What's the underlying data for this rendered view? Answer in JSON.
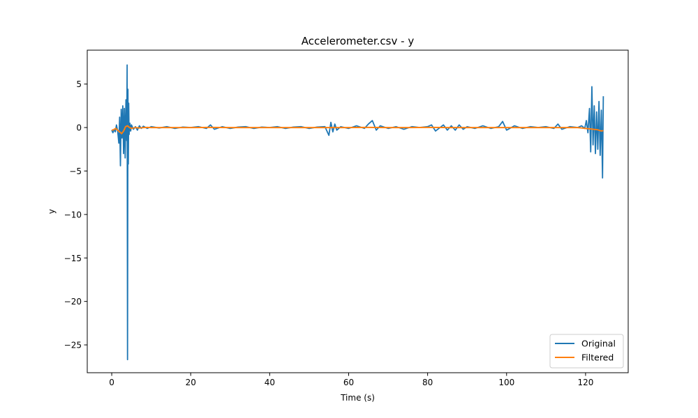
{
  "chart_data": {
    "type": "line",
    "title": "Accelerometer.csv - y",
    "xlabel": "Time (s)",
    "ylabel": "y",
    "xlim": [
      -6.2,
      130.8
    ],
    "ylim": [
      -28.2,
      8.9
    ],
    "x_ticks": [
      0,
      20,
      40,
      60,
      80,
      100,
      120
    ],
    "x_tick_labels": [
      "0",
      "20",
      "40",
      "60",
      "80",
      "100",
      "120"
    ],
    "y_ticks": [
      5,
      0,
      -5,
      -10,
      -15,
      -20,
      -25
    ],
    "y_tick_labels": [
      "5",
      "0",
      "−5",
      "−10",
      "−15",
      "−20",
      "−25"
    ],
    "grid": false,
    "legend_position": "bottom-right",
    "series": [
      {
        "name": "Original",
        "color": "#1f77b4",
        "x": [
          0.0,
          0.3,
          0.6,
          0.9,
          1.2,
          1.5,
          1.8,
          2.0,
          2.2,
          2.4,
          2.6,
          2.8,
          3.0,
          3.2,
          3.4,
          3.6,
          3.8,
          3.9,
          4.0,
          4.1,
          4.2,
          4.3,
          4.4,
          4.6,
          4.8,
          5.0,
          5.5,
          6.0,
          6.5,
          7.0,
          7.5,
          8.0,
          9.0,
          10.0,
          12.0,
          14.0,
          16.0,
          18.0,
          20.0,
          22.0,
          24.0,
          25.0,
          26.0,
          28.0,
          30.0,
          32.0,
          34.0,
          36.0,
          38.0,
          40.0,
          42.0,
          44.0,
          46.0,
          48.0,
          50.0,
          52.0,
          54.0,
          55.0,
          55.5,
          56.0,
          56.5,
          57.0,
          58.0,
          60.0,
          62.0,
          64.0,
          65.0,
          66.0,
          67.0,
          68.0,
          70.0,
          72.0,
          74.0,
          76.0,
          78.0,
          80.0,
          81.0,
          82.0,
          84.0,
          85.0,
          86.0,
          87.0,
          88.0,
          89.0,
          90.0,
          92.0,
          94.0,
          96.0,
          98.0,
          99.0,
          100.0,
          102.0,
          104.0,
          106.0,
          108.0,
          110.0,
          112.0,
          113.0,
          114.0,
          116.0,
          118.0,
          119.0,
          119.8,
          120.2,
          120.6,
          121.0,
          121.3,
          121.6,
          121.9,
          122.2,
          122.5,
          122.8,
          123.1,
          123.4,
          123.7,
          124.0,
          124.3,
          124.5
        ],
        "y": [
          -0.3,
          -0.6,
          -0.2,
          -0.5,
          0.3,
          -0.4,
          -1.8,
          1.2,
          -4.4,
          2.1,
          -1.2,
          2.5,
          -3.0,
          2.2,
          -3.5,
          3.2,
          -1.5,
          7.2,
          -26.7,
          4.4,
          -4.2,
          2.8,
          -0.8,
          0.5,
          -0.4,
          0.3,
          -0.2,
          0.1,
          -0.3,
          0.2,
          -0.1,
          0.15,
          -0.1,
          0.1,
          -0.05,
          0.1,
          -0.1,
          0.05,
          0.0,
          0.1,
          -0.1,
          0.3,
          -0.2,
          0.1,
          -0.1,
          0.05,
          0.1,
          -0.1,
          0.05,
          0.0,
          0.1,
          -0.1,
          0.05,
          0.1,
          -0.1,
          0.05,
          0.1,
          -0.9,
          0.6,
          -0.5,
          0.4,
          -0.3,
          0.1,
          -0.1,
          0.2,
          -0.1,
          0.4,
          0.8,
          -0.3,
          0.2,
          -0.1,
          0.1,
          -0.2,
          0.1,
          0.0,
          0.1,
          0.3,
          -0.4,
          0.3,
          -0.3,
          0.2,
          -0.3,
          0.3,
          -0.2,
          0.1,
          -0.1,
          0.2,
          -0.1,
          0.1,
          0.7,
          -0.3,
          0.2,
          -0.1,
          0.1,
          0.0,
          0.1,
          -0.1,
          0.4,
          -0.2,
          0.1,
          0.0,
          0.2,
          -0.1,
          0.8,
          -0.6,
          2.2,
          -2.8,
          4.7,
          -2.0,
          2.5,
          -3.0,
          1.8,
          -2.5,
          3.0,
          -3.2,
          2.0,
          -5.8,
          3.6
        ]
      },
      {
        "name": "Filtered",
        "color": "#ff7f0e",
        "x": [
          0.0,
          0.5,
          1.0,
          1.5,
          2.0,
          2.5,
          3.0,
          3.5,
          4.0,
          4.5,
          5.0,
          5.5,
          6.0,
          7.0,
          8.0,
          9.0,
          10.0,
          15.0,
          20.0,
          25.0,
          30.0,
          35.0,
          40.0,
          45.0,
          50.0,
          55.0,
          60.0,
          65.0,
          70.0,
          75.0,
          80.0,
          85.0,
          90.0,
          95.0,
          100.0,
          105.0,
          110.0,
          115.0,
          118.0,
          119.0,
          120.0,
          121.0,
          122.0,
          123.0,
          124.0,
          124.5
        ],
        "y": [
          -0.3,
          -0.25,
          -0.1,
          -0.3,
          -0.5,
          -0.7,
          -0.4,
          0.1,
          0.2,
          0.0,
          -0.1,
          -0.05,
          0.0,
          -0.05,
          0.0,
          0.02,
          0.0,
          0.0,
          0.0,
          0.02,
          0.0,
          0.0,
          0.0,
          0.0,
          0.0,
          0.0,
          0.0,
          0.02,
          0.0,
          0.0,
          0.02,
          0.0,
          0.0,
          0.0,
          0.0,
          0.0,
          0.0,
          0.0,
          0.0,
          -0.05,
          -0.1,
          -0.15,
          -0.2,
          -0.25,
          -0.4,
          -0.35
        ]
      }
    ]
  }
}
